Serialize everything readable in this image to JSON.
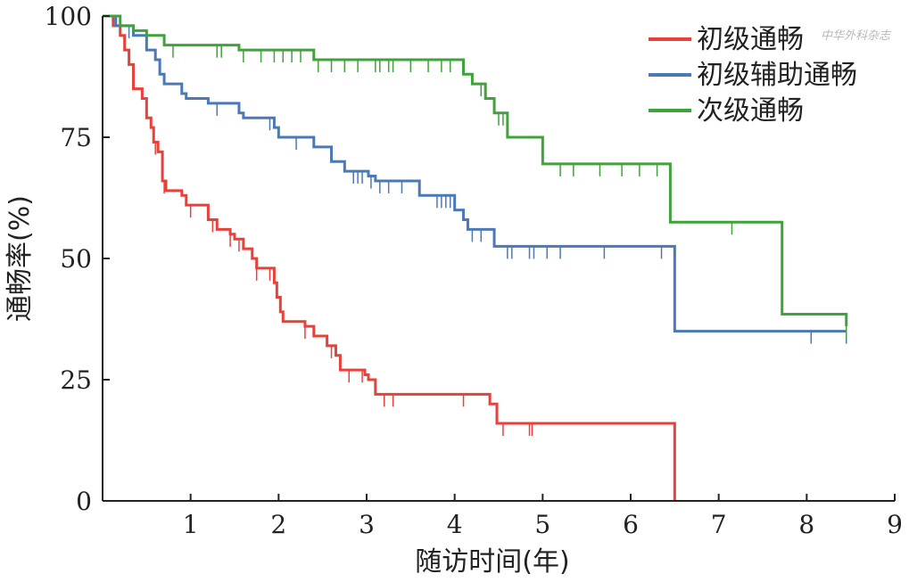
{
  "chart_data": {
    "type": "line",
    "subtype": "kaplan-meier-step",
    "xlabel": "随访时间(年)",
    "ylabel": "通畅率(%)",
    "xlim": [
      0,
      9
    ],
    "ylim": [
      0,
      100
    ],
    "xticks": [
      "1",
      "2",
      "3",
      "4",
      "5",
      "6",
      "7",
      "8",
      "9"
    ],
    "yticks": [
      "0",
      "25",
      "50",
      "75",
      "100"
    ],
    "grid": false,
    "legend_position": "top-right",
    "watermark": "中华外科杂志",
    "series": [
      {
        "name": "初级通畅",
        "color": "#e8413a",
        "steps": [
          [
            0,
            100
          ],
          [
            0.12,
            98
          ],
          [
            0.2,
            96
          ],
          [
            0.25,
            93
          ],
          [
            0.3,
            90
          ],
          [
            0.35,
            85
          ],
          [
            0.45,
            83
          ],
          [
            0.5,
            79
          ],
          [
            0.55,
            77
          ],
          [
            0.58,
            74
          ],
          [
            0.63,
            72
          ],
          [
            0.68,
            66
          ],
          [
            0.72,
            64
          ],
          [
            0.9,
            63
          ],
          [
            0.95,
            61
          ],
          [
            1.2,
            58
          ],
          [
            1.3,
            56
          ],
          [
            1.45,
            55
          ],
          [
            1.5,
            54
          ],
          [
            1.6,
            52
          ],
          [
            1.7,
            50
          ],
          [
            1.75,
            48
          ],
          [
            1.95,
            45
          ],
          [
            1.98,
            42
          ],
          [
            2.02,
            39
          ],
          [
            2.05,
            37
          ],
          [
            2.3,
            36
          ],
          [
            2.4,
            34
          ],
          [
            2.55,
            32
          ],
          [
            2.65,
            30
          ],
          [
            2.7,
            27
          ],
          [
            2.98,
            26
          ],
          [
            3.02,
            25
          ],
          [
            3.1,
            22
          ],
          [
            4.4,
            20
          ],
          [
            4.48,
            16
          ],
          [
            6.5,
            0
          ]
        ],
        "censor_x": [
          0.6,
          0.7,
          1.0,
          1.25,
          1.45,
          1.55,
          1.75,
          1.9,
          2.3,
          2.6,
          2.8,
          2.95,
          3.2,
          3.3,
          4.1,
          4.55,
          4.85,
          4.88
        ]
      },
      {
        "name": "初级辅助通畅",
        "color": "#4a79b8",
        "steps": [
          [
            0,
            100
          ],
          [
            0.15,
            98
          ],
          [
            0.35,
            96
          ],
          [
            0.5,
            93
          ],
          [
            0.6,
            91
          ],
          [
            0.65,
            88
          ],
          [
            0.7,
            86
          ],
          [
            0.9,
            84
          ],
          [
            0.95,
            83
          ],
          [
            1.2,
            82
          ],
          [
            1.55,
            80
          ],
          [
            1.6,
            79
          ],
          [
            1.95,
            77
          ],
          [
            2.0,
            75
          ],
          [
            2.4,
            73
          ],
          [
            2.6,
            70
          ],
          [
            2.75,
            68
          ],
          [
            3.02,
            67
          ],
          [
            3.1,
            66
          ],
          [
            3.6,
            63
          ],
          [
            4.0,
            60
          ],
          [
            4.1,
            58
          ],
          [
            4.15,
            56
          ],
          [
            4.45,
            52.5
          ],
          [
            6.5,
            35
          ],
          [
            8.45,
            35
          ]
        ],
        "censor_x": [
          0.3,
          1.3,
          1.9,
          2.2,
          2.85,
          2.9,
          2.95,
          3.05,
          3.15,
          3.25,
          3.4,
          3.8,
          3.85,
          3.9,
          3.95,
          4.2,
          4.3,
          4.6,
          4.65,
          4.85,
          4.9,
          5.05,
          5.2,
          5.7,
          6.35,
          8.05,
          8.45
        ]
      },
      {
        "name": "次级通畅",
        "color": "#3fa33a",
        "steps": [
          [
            0,
            100
          ],
          [
            0.2,
            98
          ],
          [
            0.35,
            97
          ],
          [
            0.5,
            96
          ],
          [
            0.7,
            94
          ],
          [
            1.55,
            93
          ],
          [
            2.4,
            91
          ],
          [
            4.1,
            88
          ],
          [
            4.2,
            86
          ],
          [
            4.35,
            83
          ],
          [
            4.45,
            80
          ],
          [
            4.6,
            75
          ],
          [
            5.0,
            69.5
          ],
          [
            6.45,
            57.5
          ],
          [
            7.72,
            38.5
          ],
          [
            8.45,
            36
          ]
        ],
        "censor_x": [
          0.8,
          1.3,
          1.35,
          1.6,
          1.8,
          1.95,
          2.05,
          2.15,
          2.25,
          2.45,
          2.6,
          2.75,
          2.9,
          3.1,
          3.15,
          3.25,
          3.3,
          3.5,
          3.7,
          3.85,
          3.95,
          4.3,
          4.5,
          4.55,
          5.2,
          5.35,
          5.65,
          5.9,
          6.1,
          6.3,
          7.15,
          8.45
        ]
      }
    ]
  }
}
